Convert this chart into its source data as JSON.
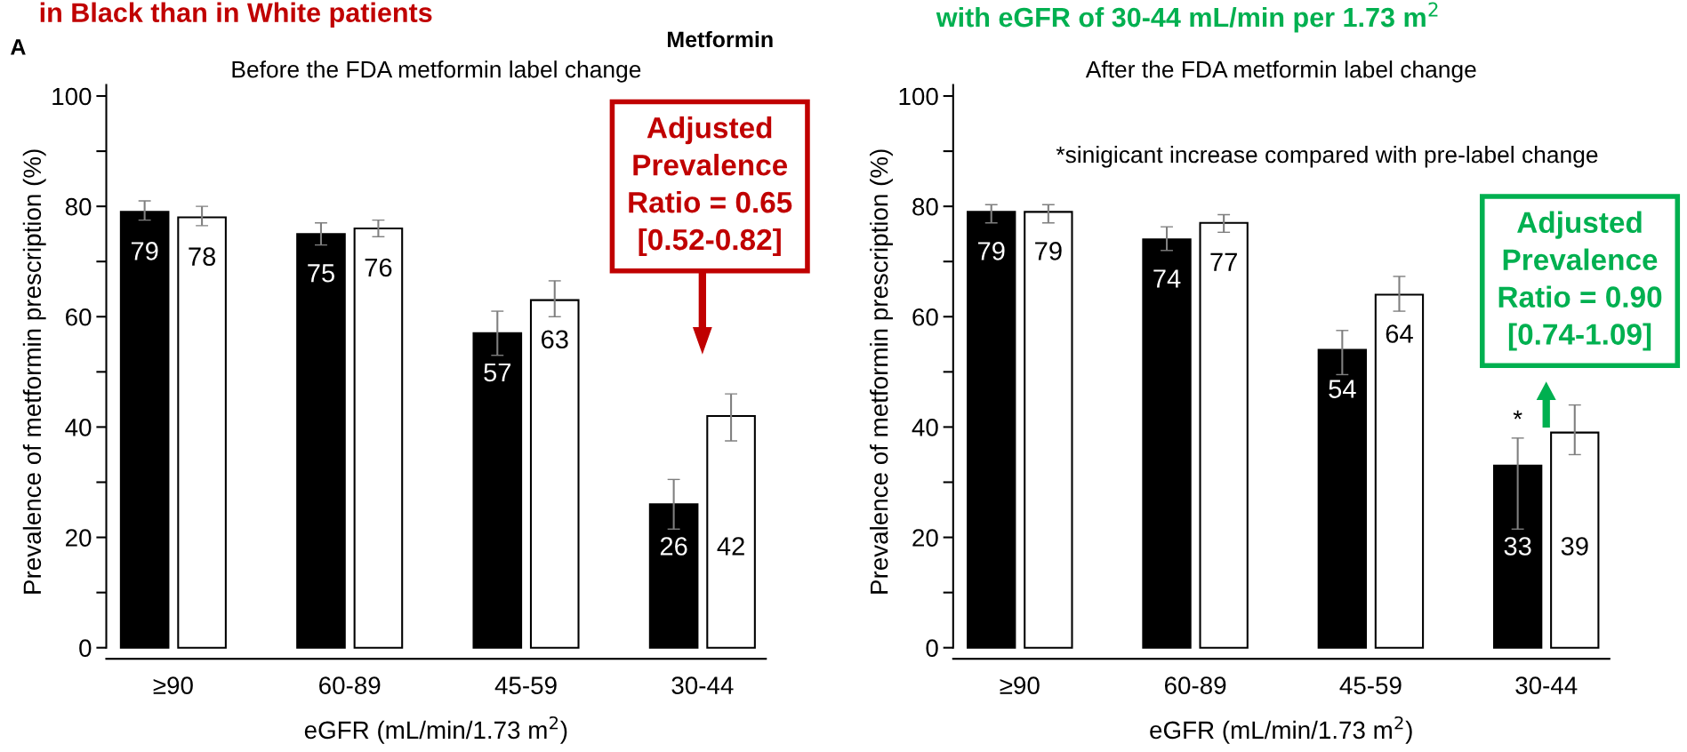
{
  "chart_data": [
    {
      "type": "bar",
      "title": "Before the FDA metformin label change",
      "xlabel": "eGFR (mL/min/1.73 m$^{2}$)",
      "ylabel": "Prevalence of metformin prescription (%)",
      "categories": [
        "≥90",
        "60-89",
        "45-59",
        "30-44"
      ],
      "series": [
        {
          "color": "#000000",
          "values": [
            79,
            75,
            57,
            26
          ],
          "errors": [
            [
              77.5,
              81
            ],
            [
              73,
              77
            ],
            [
              53,
              61
            ],
            [
              21.5,
              30.5
            ]
          ]
        },
        {
          "color": "#ffffff",
          "values": [
            78,
            76,
            63,
            42
          ],
          "errors": [
            [
              76.5,
              80
            ],
            [
              74.5,
              77.5
            ],
            [
              60,
              66.5
            ],
            [
              37.5,
              46
            ]
          ]
        }
      ],
      "ylim": [
        -2,
        102
      ],
      "yticks": [
        0,
        {
          "value": 10,
          "label": null
        },
        20,
        {
          "value": 30,
          "label": null
        },
        40,
        {
          "value": 50,
          "label": null
        },
        60,
        {
          "value": 70,
          "label": null
        },
        80,
        {
          "value": 90,
          "label": null
        },
        100
      ],
      "data_labels": true,
      "grid": false,
      "legend": false,
      "annotations": [
        "in Black than in White patients",
        "A",
        "Adjusted\nPrevalence\nRatio = 0.65\n[0.52-0.82]"
      ]
    },
    {
      "type": "bar",
      "title": "After the FDA metformin label change",
      "xlabel": "eGFR (mL/min/1.73 m$^{2}$)",
      "ylabel": "Prevalence of metformin prescription (%)",
      "categories": [
        "≥90",
        "60-89",
        "45-59",
        "30-44"
      ],
      "series": [
        {
          "color": "#000000",
          "values": [
            79,
            74,
            54,
            33
          ],
          "errors": [
            [
              77,
              80.3
            ],
            [
              72,
              76.3
            ],
            [
              49.5,
              57.5
            ],
            [
              21.5,
              38
            ]
          ]
        },
        {
          "color": "#ffffff",
          "values": [
            79,
            77,
            64,
            39
          ],
          "errors": [
            [
              77,
              80.3
            ],
            [
              75.3,
              78.5
            ],
            [
              61,
              67.3
            ],
            [
              35,
              44
            ]
          ]
        }
      ],
      "ylim": [
        -2,
        102
      ],
      "yticks": [
        0,
        {
          "value": 10,
          "label": null
        },
        20,
        {
          "value": 30,
          "label": null
        },
        40,
        {
          "value": 50,
          "label": null
        },
        60,
        {
          "value": 70,
          "label": null
        },
        80,
        {
          "value": 90,
          "label": null
        },
        100
      ],
      "data_labels": true,
      "grid": false,
      "legend": false,
      "annotations": [
        "with eGFR of 30-44 mL/min per 1.73 m$^{2}$",
        "Metformin",
        "*sinigicant increase compared with pre-label change",
        "*",
        "Adjusted\nPrevalence\nRatio = 0.90\n[0.74-1.09]"
      ]
    }
  ]
}
